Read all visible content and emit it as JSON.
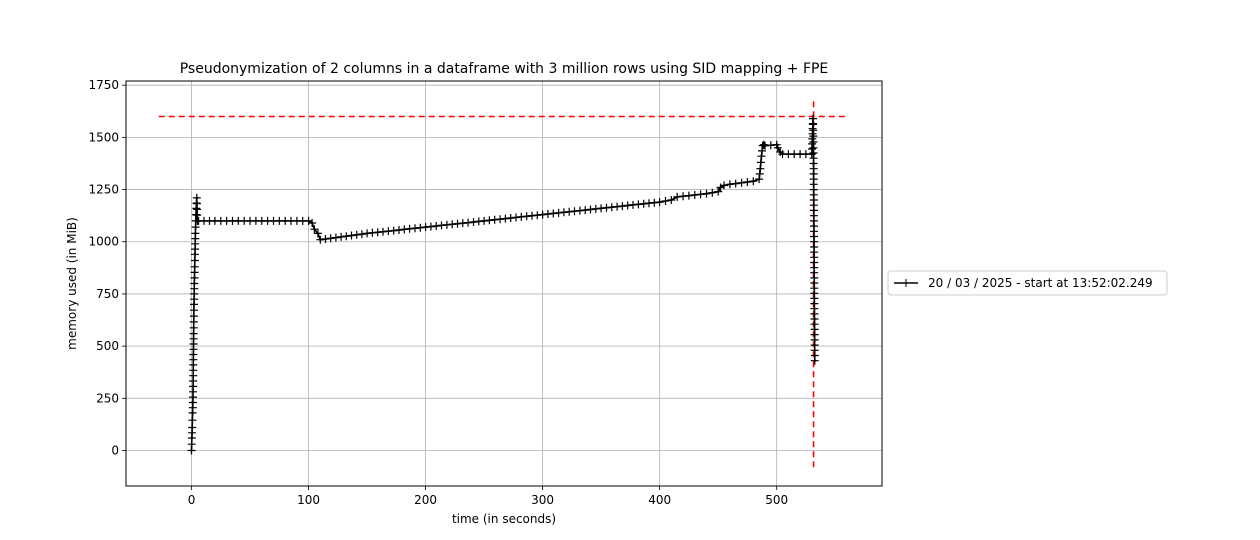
{
  "chart_data": {
    "type": "line",
    "title": "Pseudonymization of 2 columns in a dataframe with 3 million rows using SID mapping + FPE",
    "xlabel": "time (in seconds)",
    "ylabel": "memory used (in MiB)",
    "xlim": [
      -56,
      590
    ],
    "ylim": [
      -170,
      1770
    ],
    "xticks": [
      0,
      100,
      200,
      300,
      400,
      500
    ],
    "yticks": [
      0,
      250,
      500,
      750,
      1000,
      1250,
      1500,
      1750
    ],
    "grid": true,
    "legend_position": "right",
    "marker": "+",
    "series": [
      {
        "name": "20 / 03 / 2025 - start at 13:52:02.249",
        "color": "#000000",
        "x": [
          0,
          0.3,
          0.6,
          0.9,
          1.2,
          1.5,
          1.8,
          2.1,
          2.4,
          2.7,
          3.0,
          3.3,
          3.6,
          4.0,
          4.5,
          5.0,
          6,
          20,
          40,
          60,
          80,
          100,
          103,
          105,
          108,
          110,
          150,
          200,
          250,
          300,
          350,
          400,
          410,
          415,
          440,
          450,
          452,
          455,
          460,
          480,
          485,
          486,
          487,
          488,
          489,
          490,
          500,
          501,
          503,
          505,
          520,
          530,
          531,
          531.5,
          532,
          532.3,
          532.6
        ],
        "y": [
          0,
          60,
          110,
          180,
          230,
          410,
          560,
          700,
          800,
          880,
          940,
          1040,
          1100,
          1160,
          1210,
          1100,
          1100,
          1100,
          1100,
          1100,
          1100,
          1100,
          1090,
          1060,
          1040,
          1010,
          1040,
          1070,
          1100,
          1130,
          1160,
          1190,
          1200,
          1215,
          1230,
          1240,
          1260,
          1270,
          1275,
          1290,
          1300,
          1350,
          1410,
          1460,
          1465,
          1460,
          1465,
          1450,
          1430,
          1420,
          1420,
          1420,
          1590,
          1450,
          950,
          630,
          430
        ]
      }
    ],
    "reference_lines": [
      {
        "orientation": "horizontal",
        "value": 1600,
        "from": -28,
        "to": 560,
        "color": "#ff0000",
        "style": "dashed"
      },
      {
        "orientation": "vertical",
        "value": 531.5,
        "from": -80,
        "to": 1680,
        "color": "#ff0000",
        "style": "dashed"
      }
    ]
  }
}
